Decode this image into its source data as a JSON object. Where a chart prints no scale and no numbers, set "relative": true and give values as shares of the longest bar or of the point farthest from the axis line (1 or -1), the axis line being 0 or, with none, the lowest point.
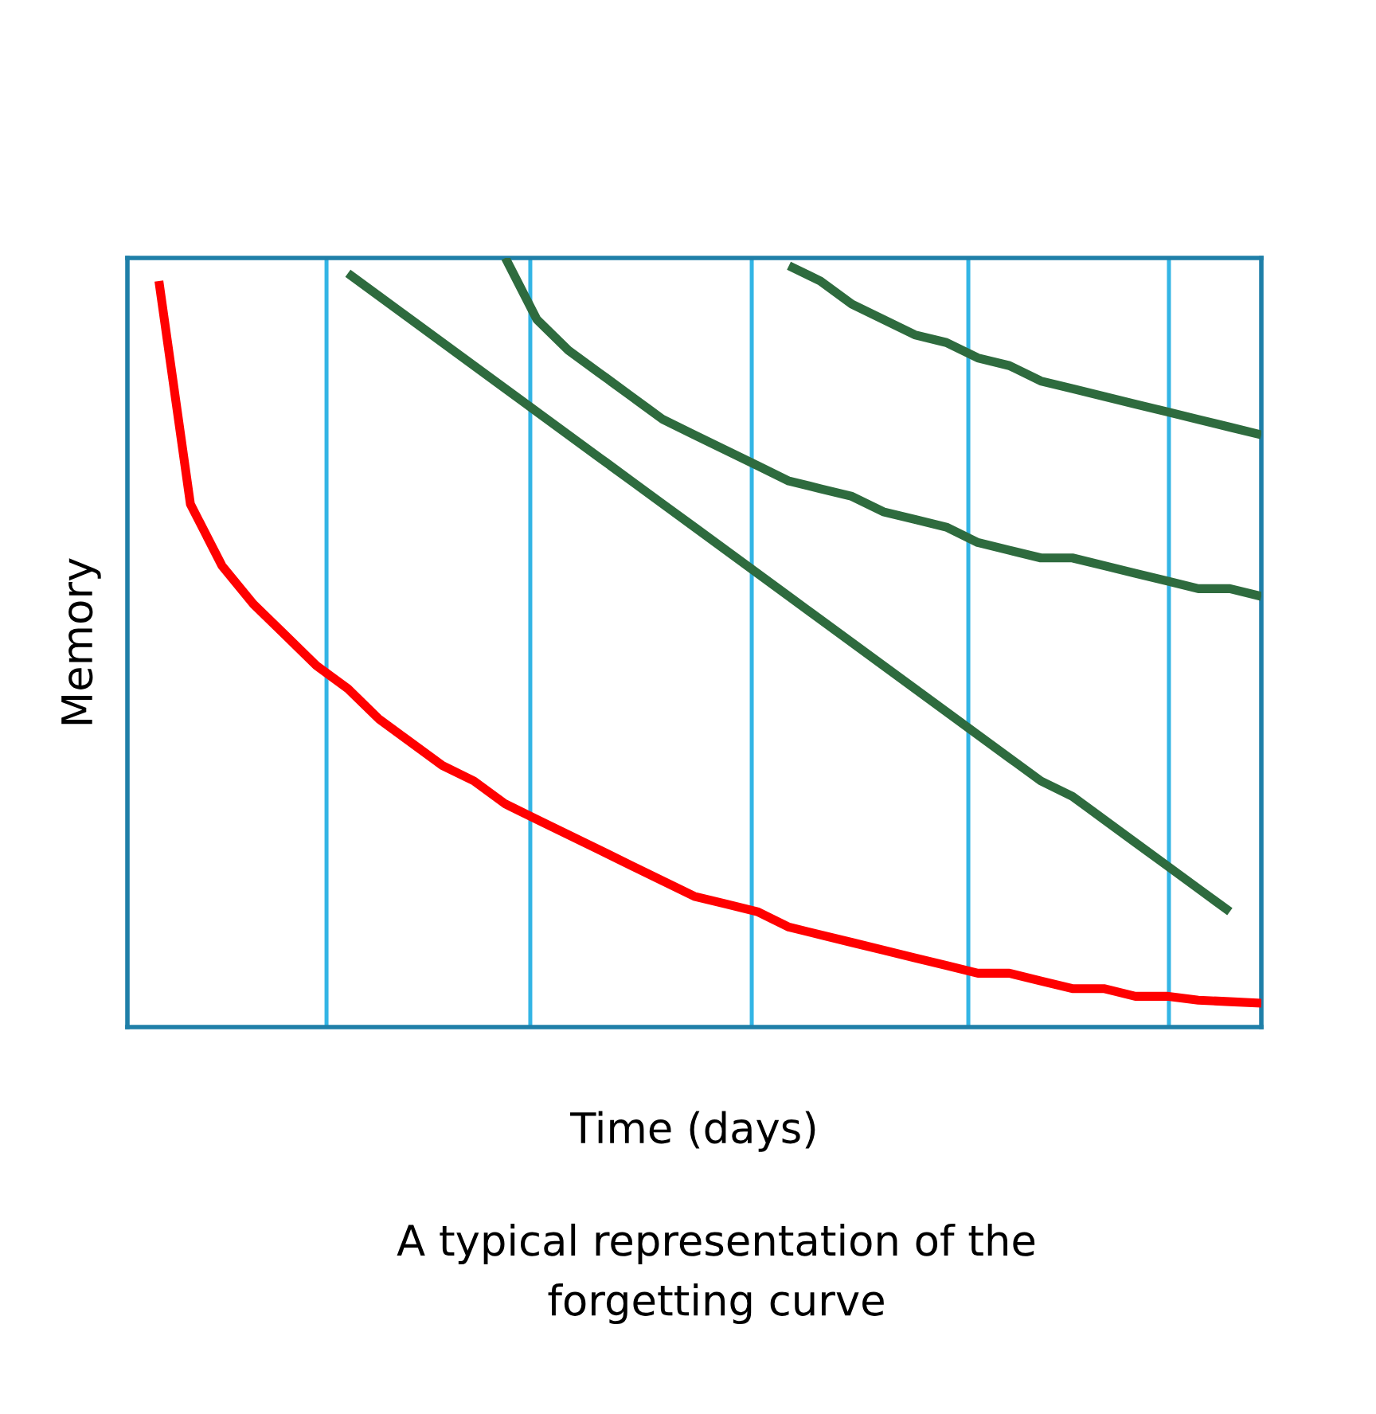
{
  "chart_data": {
    "type": "line",
    "relative": true,
    "xlabel": "Time (days)",
    "ylabel": "Memory",
    "annotations": [
      "A typical representation of the\nforgetting curve"
    ],
    "categories": [
      null,
      null,
      null,
      null,
      null,
      null,
      null,
      null,
      null,
      null,
      null,
      null,
      null,
      null,
      null,
      null,
      null,
      null,
      null,
      null,
      null,
      null,
      null,
      null,
      null,
      null,
      null,
      null,
      null,
      null,
      null,
      null,
      null,
      null,
      null,
      null,
      null
    ],
    "series": [
      {
        "color": "#ff0000",
        "values": [
          null,
          0.97,
          0.68,
          0.6,
          0.55,
          0.51,
          0.47,
          0.44,
          0.4,
          0.37,
          0.34,
          0.32,
          0.29,
          0.27,
          0.25,
          0.23,
          0.21,
          0.19,
          0.17,
          0.16,
          0.15,
          0.13,
          0.12,
          0.11,
          0.1,
          0.09,
          0.08,
          0.07,
          0.07,
          0.06,
          0.05,
          0.05,
          0.04,
          0.04,
          0.035,
          0.033,
          0.031
        ]
      },
      {
        "color": "#2e6b3e",
        "values": [
          null,
          null,
          null,
          null,
          null,
          null,
          null,
          0.98,
          0.95,
          0.92,
          0.89,
          0.86,
          0.83,
          0.8,
          0.77,
          0.74,
          0.71,
          0.68,
          0.65,
          0.62,
          0.59,
          0.56,
          0.53,
          0.5,
          0.47,
          0.44,
          0.41,
          0.38,
          0.35,
          0.32,
          0.3,
          0.27,
          0.24,
          0.21,
          0.18,
          0.15,
          null
        ]
      },
      {
        "color": "#2e6b3e",
        "values": [
          null,
          null,
          null,
          null,
          null,
          null,
          null,
          null,
          null,
          null,
          null,
          null,
          1.0,
          0.92,
          0.88,
          0.85,
          0.82,
          0.79,
          0.77,
          0.75,
          0.73,
          0.71,
          0.7,
          0.69,
          0.67,
          0.66,
          0.65,
          0.63,
          0.62,
          0.61,
          0.61,
          0.6,
          0.59,
          0.58,
          0.57,
          0.57,
          0.56
        ]
      },
      {
        "color": "#2e6b3e",
        "values": [
          null,
          null,
          null,
          null,
          null,
          null,
          null,
          null,
          null,
          null,
          null,
          null,
          null,
          null,
          null,
          null,
          null,
          null,
          null,
          null,
          null,
          0.99,
          0.97,
          0.94,
          0.92,
          0.9,
          0.89,
          0.87,
          0.86,
          0.84,
          0.83,
          0.82,
          0.81,
          0.8,
          0.79,
          0.78,
          0.77
        ]
      }
    ],
    "grid": false,
    "legend": false,
    "marker": "none",
    "line_style": "solid",
    "tick_labels": false
  }
}
